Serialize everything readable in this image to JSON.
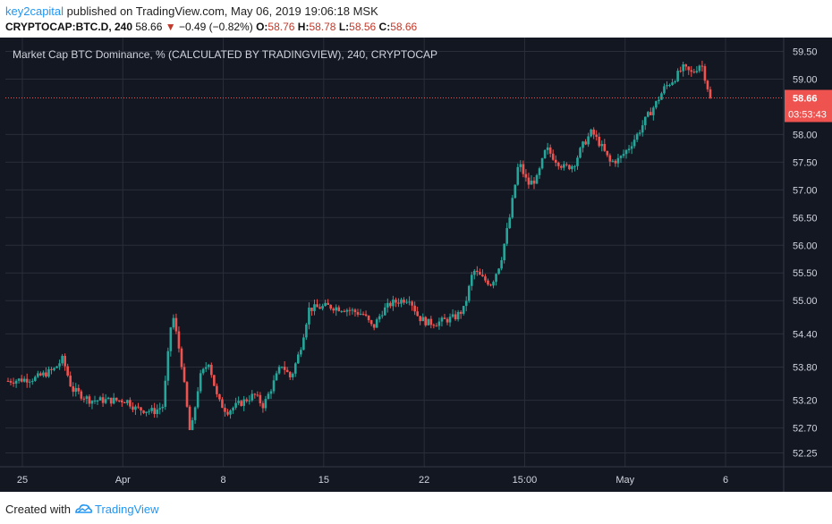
{
  "header": {
    "author": "key2capital",
    "published_text": "published on TradingView.com, May 06, 2019 19:06:18 MSK",
    "symbol": "CRYPTOCAP:BTC.D, 240",
    "last": "58.66",
    "change_arrow": "▼",
    "change": "−0.49 (−0.82%)",
    "o_label": "O:",
    "o": "58.76",
    "h_label": "H:",
    "h": "58.78",
    "l_label": "L:",
    "l": "58.56",
    "c_label": "C:",
    "c": "58.66"
  },
  "footer": {
    "created_with": "Created with",
    "brand": "TradingView"
  },
  "colors": {
    "background": "#131722",
    "grid": "#2a2e39",
    "up": "#26a69a",
    "down": "#ef5350",
    "axis_text": "#d1d4dc",
    "price_line": "#ef5350"
  },
  "chart_data": {
    "type": "candlestick",
    "title": "Market Cap BTC Dominance, % (CALCULATED BY TRADINGVIEW), 240, CRYPTOCAP",
    "y_ticks": [
      59.5,
      59.0,
      58.0,
      57.5,
      57.0,
      56.5,
      56.0,
      55.5,
      55.0,
      54.4,
      53.8,
      53.2,
      52.7,
      52.25
    ],
    "y_tick_labels": [
      "59.50",
      "59.00",
      "58.00",
      "57.50",
      "57.00",
      "56.50",
      "56.00",
      "55.50",
      "55.00",
      "54.40",
      "53.80",
      "53.20",
      "52.70",
      "52.25"
    ],
    "ylim": [
      52.0,
      59.75
    ],
    "x_ticks": [
      "25",
      "Apr",
      "8",
      "15",
      "22",
      "15:00",
      "May",
      "6"
    ],
    "current_price": {
      "value": 58.66,
      "label": "58.66",
      "countdown": "03:53:43"
    },
    "path": [
      [
        0,
        53.55
      ],
      [
        3,
        53.6
      ],
      [
        5,
        53.75
      ],
      [
        6,
        53.95
      ],
      [
        7,
        53.4
      ],
      [
        9,
        53.2
      ],
      [
        11,
        53.2
      ],
      [
        13,
        53.2
      ],
      [
        14,
        53.05
      ],
      [
        16,
        53.0
      ],
      [
        17,
        53.1
      ],
      [
        18,
        54.8
      ],
      [
        19,
        53.9
      ],
      [
        20,
        52.55
      ],
      [
        21,
        53.6
      ],
      [
        22,
        53.9
      ],
      [
        23,
        53.2
      ],
      [
        24,
        53.0
      ],
      [
        25,
        53.1
      ],
      [
        27,
        53.3
      ],
      [
        28,
        53.1
      ],
      [
        30,
        53.85
      ],
      [
        31,
        53.6
      ],
      [
        32,
        54.1
      ],
      [
        33,
        54.85
      ],
      [
        35,
        54.9
      ],
      [
        37,
        54.85
      ],
      [
        39,
        54.75
      ],
      [
        40,
        54.5
      ],
      [
        41,
        54.8
      ],
      [
        42,
        54.95
      ],
      [
        44,
        55.05
      ],
      [
        45,
        54.7
      ],
      [
        46,
        54.6
      ],
      [
        47,
        54.6
      ],
      [
        48,
        54.65
      ],
      [
        49,
        54.7
      ],
      [
        50,
        54.85
      ],
      [
        51,
        55.55
      ],
      [
        52,
        55.4
      ],
      [
        53,
        55.3
      ],
      [
        54,
        55.7
      ],
      [
        55,
        56.5
      ],
      [
        56,
        57.5
      ],
      [
        57,
        57.1
      ],
      [
        58,
        57.2
      ],
      [
        59,
        57.75
      ],
      [
        60,
        57.55
      ],
      [
        61,
        57.4
      ],
      [
        62,
        57.45
      ],
      [
        63,
        57.8
      ],
      [
        64,
        58.05
      ],
      [
        65,
        57.8
      ],
      [
        66,
        57.5
      ],
      [
        67,
        57.55
      ],
      [
        68,
        57.75
      ],
      [
        69,
        58.0
      ],
      [
        70,
        58.3
      ],
      [
        71,
        58.55
      ],
      [
        72,
        58.85
      ],
      [
        73,
        59.0
      ],
      [
        74,
        59.2
      ],
      [
        75,
        59.1
      ],
      [
        76,
        59.3
      ],
      [
        77,
        58.66
      ]
    ]
  }
}
